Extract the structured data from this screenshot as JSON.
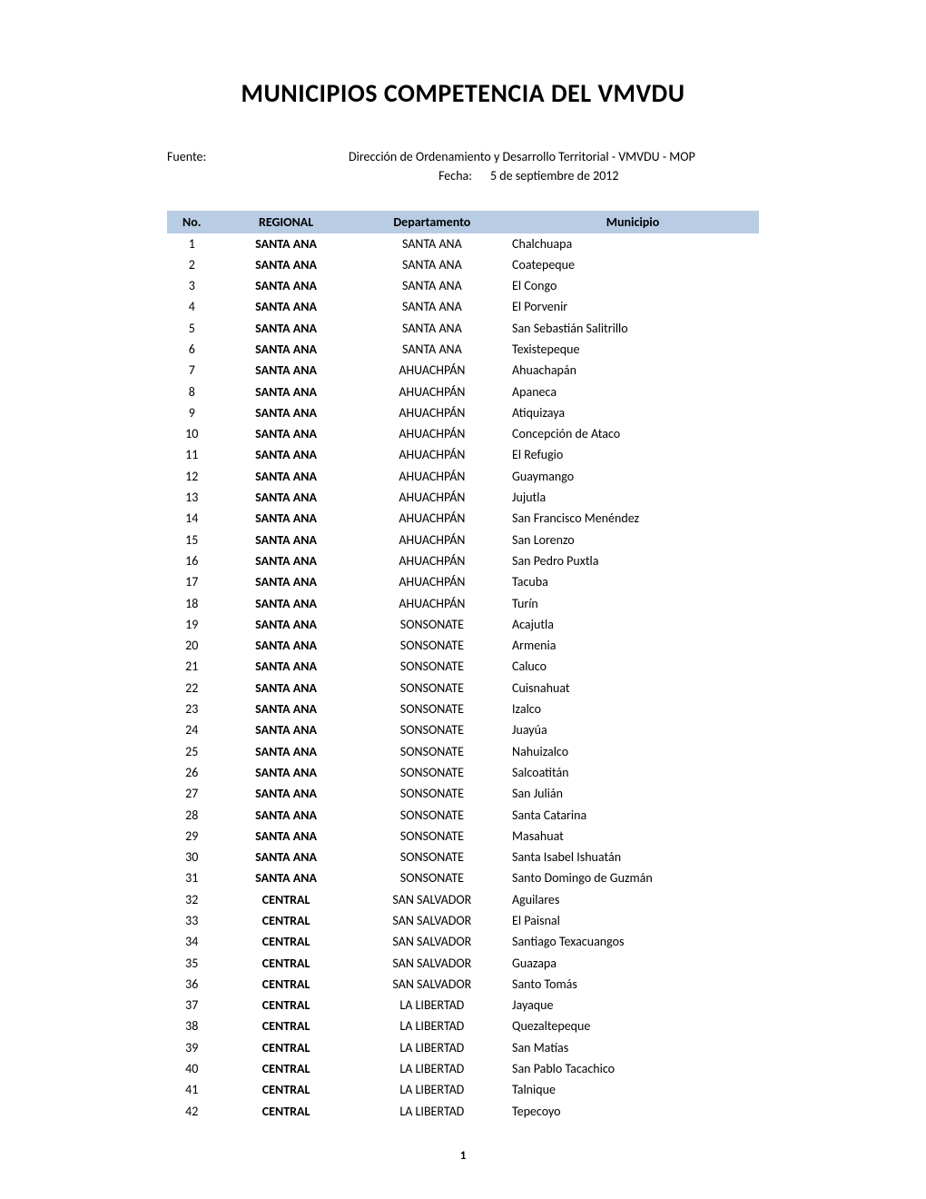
{
  "title": "MUNICIPIOS COMPETENCIA DEL VMVDU",
  "meta": {
    "fuente_label": "Fuente:",
    "fuente_value": "Dirección de Ordenamiento y Desarrollo Territorial - VMVDU - MOP",
    "fecha_label": "Fecha:",
    "fecha_value": "5 de septiembre de 2012"
  },
  "headers": {
    "no": "No.",
    "regional": "REGIONAL",
    "departamento": "Departamento",
    "municipio": "Municipio"
  },
  "rows": [
    {
      "no": "1",
      "regional": "SANTA ANA",
      "departamento": "SANTA ANA",
      "municipio": "Chalchuapa"
    },
    {
      "no": "2",
      "regional": "SANTA ANA",
      "departamento": "SANTA ANA",
      "municipio": "Coatepeque"
    },
    {
      "no": "3",
      "regional": "SANTA ANA",
      "departamento": "SANTA ANA",
      "municipio": "El Congo"
    },
    {
      "no": "4",
      "regional": "SANTA ANA",
      "departamento": "SANTA ANA",
      "municipio": "El Porvenir"
    },
    {
      "no": "5",
      "regional": "SANTA ANA",
      "departamento": "SANTA ANA",
      "municipio": "San Sebastián Salitrillo"
    },
    {
      "no": "6",
      "regional": "SANTA ANA",
      "departamento": "SANTA ANA",
      "municipio": "Texistepeque"
    },
    {
      "no": "7",
      "regional": "SANTA ANA",
      "departamento": "AHUACHPÁN",
      "municipio": "Ahuachapán"
    },
    {
      "no": "8",
      "regional": "SANTA ANA",
      "departamento": "AHUACHPÁN",
      "municipio": "Apaneca"
    },
    {
      "no": "9",
      "regional": "SANTA ANA",
      "departamento": "AHUACHPÁN",
      "municipio": "Atiquizaya"
    },
    {
      "no": "10",
      "regional": "SANTA ANA",
      "departamento": "AHUACHPÁN",
      "municipio": "Concepción de Ataco"
    },
    {
      "no": "11",
      "regional": "SANTA ANA",
      "departamento": "AHUACHPÁN",
      "municipio": "El Refugio"
    },
    {
      "no": "12",
      "regional": "SANTA ANA",
      "departamento": "AHUACHPÁN",
      "municipio": "Guaymango"
    },
    {
      "no": "13",
      "regional": "SANTA ANA",
      "departamento": "AHUACHPÁN",
      "municipio": "Jujutla"
    },
    {
      "no": "14",
      "regional": "SANTA ANA",
      "departamento": "AHUACHPÁN",
      "municipio": "San Francisco Menéndez"
    },
    {
      "no": "15",
      "regional": "SANTA ANA",
      "departamento": "AHUACHPÁN",
      "municipio": "San Lorenzo"
    },
    {
      "no": "16",
      "regional": "SANTA ANA",
      "departamento": "AHUACHPÁN",
      "municipio": "San Pedro Puxtla"
    },
    {
      "no": "17",
      "regional": "SANTA ANA",
      "departamento": "AHUACHPÁN",
      "municipio": "Tacuba"
    },
    {
      "no": "18",
      "regional": "SANTA ANA",
      "departamento": "AHUACHPÁN",
      "municipio": "Turín"
    },
    {
      "no": "19",
      "regional": "SANTA ANA",
      "departamento": "SONSONATE",
      "municipio": "Acajutla"
    },
    {
      "no": "20",
      "regional": "SANTA ANA",
      "departamento": "SONSONATE",
      "municipio": "Armenia"
    },
    {
      "no": "21",
      "regional": "SANTA ANA",
      "departamento": "SONSONATE",
      "municipio": "Caluco"
    },
    {
      "no": "22",
      "regional": "SANTA ANA",
      "departamento": "SONSONATE",
      "municipio": "Cuisnahuat"
    },
    {
      "no": "23",
      "regional": "SANTA ANA",
      "departamento": "SONSONATE",
      "municipio": "Izalco"
    },
    {
      "no": "24",
      "regional": "SANTA ANA",
      "departamento": "SONSONATE",
      "municipio": "Juayúa"
    },
    {
      "no": "25",
      "regional": "SANTA ANA",
      "departamento": "SONSONATE",
      "municipio": "Nahuizalco"
    },
    {
      "no": "26",
      "regional": "SANTA ANA",
      "departamento": "SONSONATE",
      "municipio": "Salcoatitán"
    },
    {
      "no": "27",
      "regional": "SANTA ANA",
      "departamento": "SONSONATE",
      "municipio": "San Julián"
    },
    {
      "no": "28",
      "regional": "SANTA ANA",
      "departamento": "SONSONATE",
      "municipio": "Santa Catarina"
    },
    {
      "no": "29",
      "regional": "SANTA ANA",
      "departamento": "SONSONATE",
      "municipio": "Masahuat"
    },
    {
      "no": "30",
      "regional": "SANTA ANA",
      "departamento": "SONSONATE",
      "municipio": "Santa Isabel Ishuatán"
    },
    {
      "no": "31",
      "regional": "SANTA ANA",
      "departamento": "SONSONATE",
      "municipio": "Santo Domingo de Guzmán"
    },
    {
      "no": "32",
      "regional": "CENTRAL",
      "departamento": "SAN SALVADOR",
      "municipio": "Aguilares"
    },
    {
      "no": "33",
      "regional": "CENTRAL",
      "departamento": "SAN SALVADOR",
      "municipio": "El Paisnal"
    },
    {
      "no": "34",
      "regional": "CENTRAL",
      "departamento": "SAN SALVADOR",
      "municipio": "Santiago Texacuangos"
    },
    {
      "no": "35",
      "regional": "CENTRAL",
      "departamento": "SAN SALVADOR",
      "municipio": "Guazapa"
    },
    {
      "no": "36",
      "regional": "CENTRAL",
      "departamento": "SAN SALVADOR",
      "municipio": "Santo Tomás"
    },
    {
      "no": "37",
      "regional": "CENTRAL",
      "departamento": "LA LIBERTAD",
      "municipio": "Jayaque"
    },
    {
      "no": "38",
      "regional": "CENTRAL",
      "departamento": "LA LIBERTAD",
      "municipio": "Quezaltepeque"
    },
    {
      "no": "39",
      "regional": "CENTRAL",
      "departamento": "LA LIBERTAD",
      "municipio": "San Matías"
    },
    {
      "no": "40",
      "regional": "CENTRAL",
      "departamento": "LA LIBERTAD",
      "municipio": "San Pablo Tacachico"
    },
    {
      "no": "41",
      "regional": "CENTRAL",
      "departamento": "LA LIBERTAD",
      "municipio": "Talnique"
    },
    {
      "no": "42",
      "regional": "CENTRAL",
      "departamento": "LA LIBERTAD",
      "municipio": "Tepecoyo"
    }
  ],
  "page_number": "1",
  "colors": {
    "header_bg": "#b8cce4",
    "text": "#000000",
    "background": "#ffffff"
  },
  "typography": {
    "title_fontsize": 28,
    "body_fontsize": 14,
    "font_family": "Calibri"
  }
}
